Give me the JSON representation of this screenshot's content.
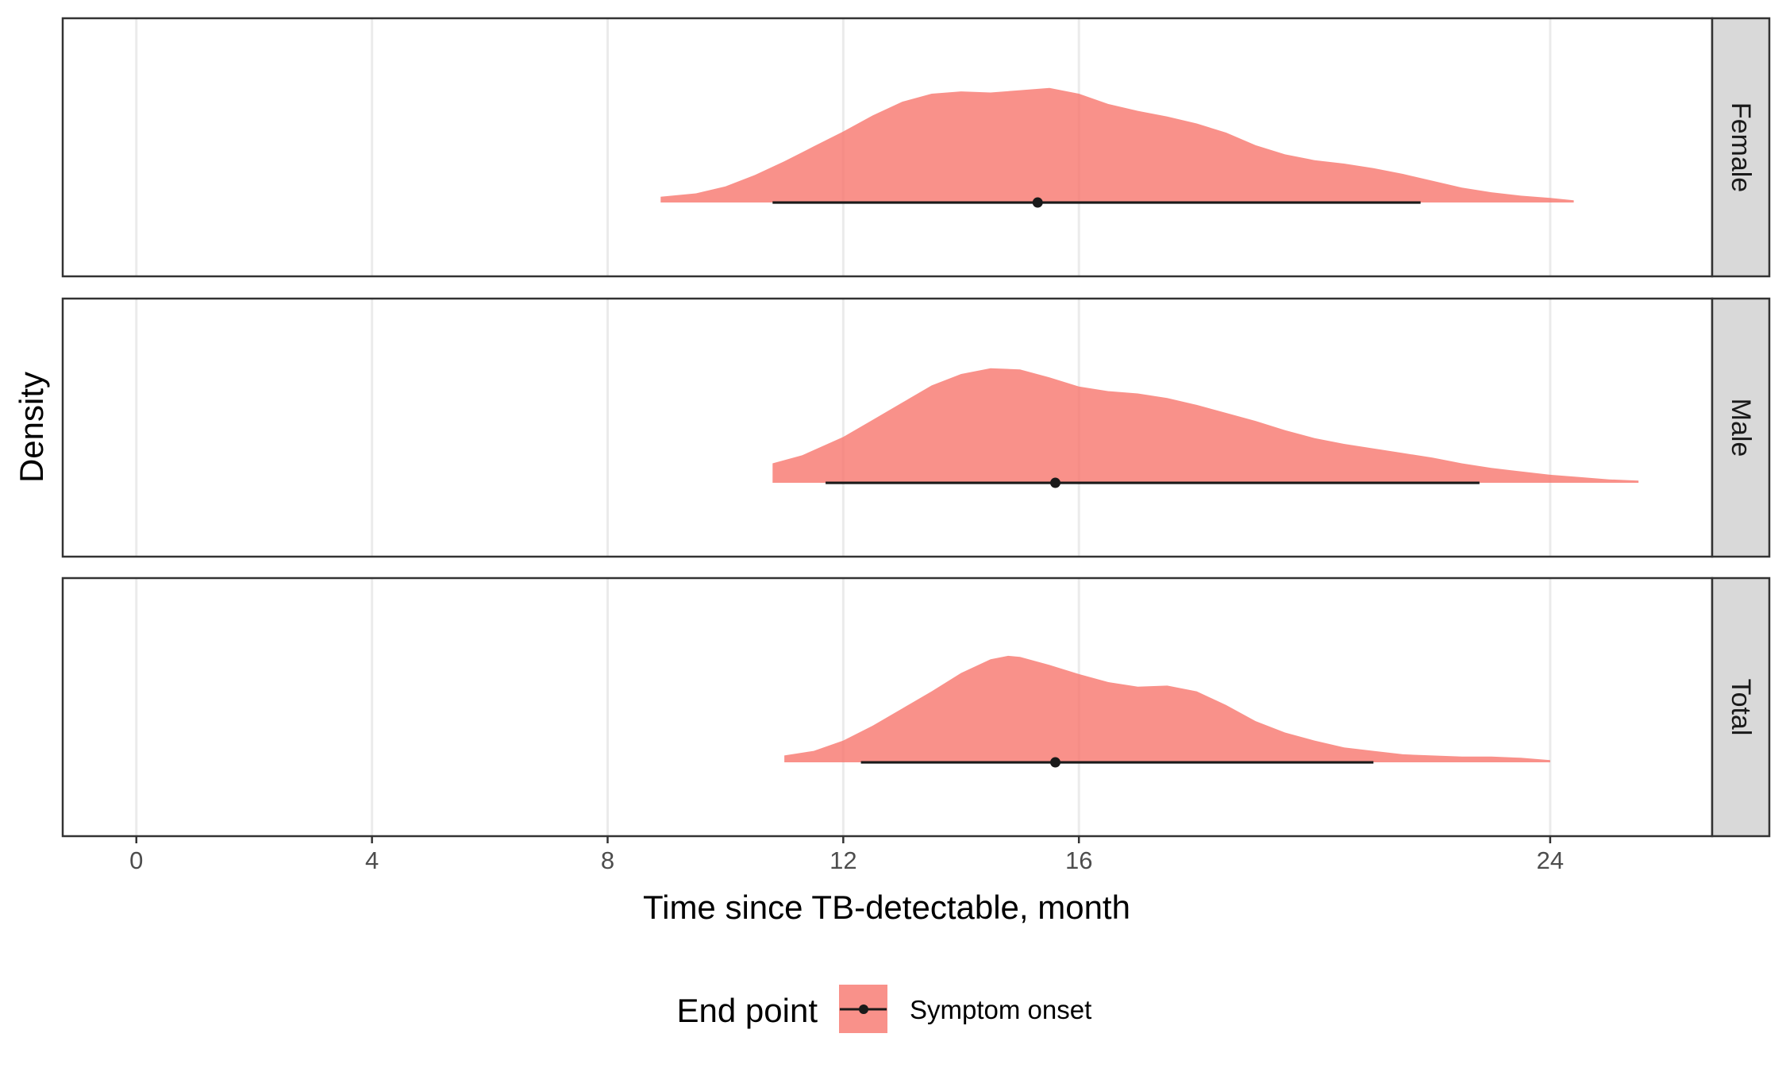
{
  "chart_data": {
    "type": "area",
    "subtype": "half-eye density with median point and interval (faceted)",
    "xlabel": "Time since TB-detectable, month",
    "ylabel": "Density",
    "x_ticks": [
      0,
      4,
      8,
      12,
      16,
      24
    ],
    "xlim": [
      -1.25,
      26.75
    ],
    "grid": "vertical major gridlines",
    "legend": {
      "position": "bottom",
      "title": "End point",
      "entries": [
        {
          "label": "Symptom onset",
          "color": "#F8766D"
        }
      ]
    },
    "fill_color": "#F8766D",
    "fill_opacity": 0.8,
    "facets": [
      {
        "label": "Female",
        "median": 15.3,
        "interval": [
          10.8,
          21.8
        ],
        "density": [
          [
            8.9,
            0.05
          ],
          [
            9.5,
            0.08
          ],
          [
            10.0,
            0.14
          ],
          [
            10.5,
            0.24
          ],
          [
            11.0,
            0.36
          ],
          [
            11.5,
            0.49
          ],
          [
            12.0,
            0.62
          ],
          [
            12.5,
            0.76
          ],
          [
            13.0,
            0.88
          ],
          [
            13.5,
            0.95
          ],
          [
            14.0,
            0.97
          ],
          [
            14.5,
            0.96
          ],
          [
            15.0,
            0.98
          ],
          [
            15.5,
            1.0
          ],
          [
            16.0,
            0.95
          ],
          [
            16.5,
            0.86
          ],
          [
            17.0,
            0.8
          ],
          [
            17.5,
            0.75
          ],
          [
            18.0,
            0.69
          ],
          [
            18.5,
            0.61
          ],
          [
            19.0,
            0.5
          ],
          [
            19.5,
            0.42
          ],
          [
            20.0,
            0.37
          ],
          [
            20.5,
            0.34
          ],
          [
            21.0,
            0.3
          ],
          [
            21.5,
            0.25
          ],
          [
            22.0,
            0.19
          ],
          [
            22.5,
            0.13
          ],
          [
            23.0,
            0.09
          ],
          [
            23.5,
            0.06
          ],
          [
            24.0,
            0.04
          ],
          [
            24.4,
            0.02
          ]
        ]
      },
      {
        "label": "Male",
        "median": 15.6,
        "interval": [
          11.7,
          22.8
        ],
        "density": [
          [
            10.8,
            0.1
          ],
          [
            10.8,
            0.17
          ],
          [
            11.3,
            0.24
          ],
          [
            12.0,
            0.4
          ],
          [
            12.5,
            0.55
          ],
          [
            13.0,
            0.7
          ],
          [
            13.5,
            0.85
          ],
          [
            14.0,
            0.95
          ],
          [
            14.5,
            1.0
          ],
          [
            15.0,
            0.99
          ],
          [
            15.5,
            0.92
          ],
          [
            16.0,
            0.84
          ],
          [
            16.5,
            0.8
          ],
          [
            17.0,
            0.78
          ],
          [
            17.5,
            0.74
          ],
          [
            18.0,
            0.68
          ],
          [
            18.5,
            0.61
          ],
          [
            19.0,
            0.54
          ],
          [
            19.5,
            0.46
          ],
          [
            20.0,
            0.39
          ],
          [
            20.5,
            0.34
          ],
          [
            21.0,
            0.3
          ],
          [
            21.5,
            0.26
          ],
          [
            22.0,
            0.22
          ],
          [
            22.5,
            0.17
          ],
          [
            23.0,
            0.13
          ],
          [
            23.5,
            0.1
          ],
          [
            24.0,
            0.07
          ],
          [
            24.5,
            0.05
          ],
          [
            25.0,
            0.03
          ],
          [
            25.5,
            0.02
          ]
        ]
      },
      {
        "label": "Total",
        "median": 15.6,
        "interval": [
          12.3,
          21.0
        ],
        "density": [
          [
            11.0,
            0.03
          ],
          [
            11.0,
            0.06
          ],
          [
            11.5,
            0.1
          ],
          [
            12.0,
            0.19
          ],
          [
            12.5,
            0.32
          ],
          [
            13.0,
            0.47
          ],
          [
            13.5,
            0.62
          ],
          [
            14.0,
            0.78
          ],
          [
            14.5,
            0.9
          ],
          [
            14.8,
            0.93
          ],
          [
            15.0,
            0.92
          ],
          [
            15.5,
            0.85
          ],
          [
            16.0,
            0.77
          ],
          [
            16.5,
            0.7
          ],
          [
            17.0,
            0.66
          ],
          [
            17.5,
            0.67
          ],
          [
            18.0,
            0.62
          ],
          [
            18.5,
            0.5
          ],
          [
            19.0,
            0.36
          ],
          [
            19.5,
            0.26
          ],
          [
            20.0,
            0.19
          ],
          [
            20.5,
            0.13
          ],
          [
            21.0,
            0.1
          ],
          [
            21.5,
            0.07
          ],
          [
            22.0,
            0.06
          ],
          [
            22.5,
            0.05
          ],
          [
            23.0,
            0.05
          ],
          [
            23.5,
            0.04
          ],
          [
            24.0,
            0.02
          ]
        ]
      }
    ]
  }
}
